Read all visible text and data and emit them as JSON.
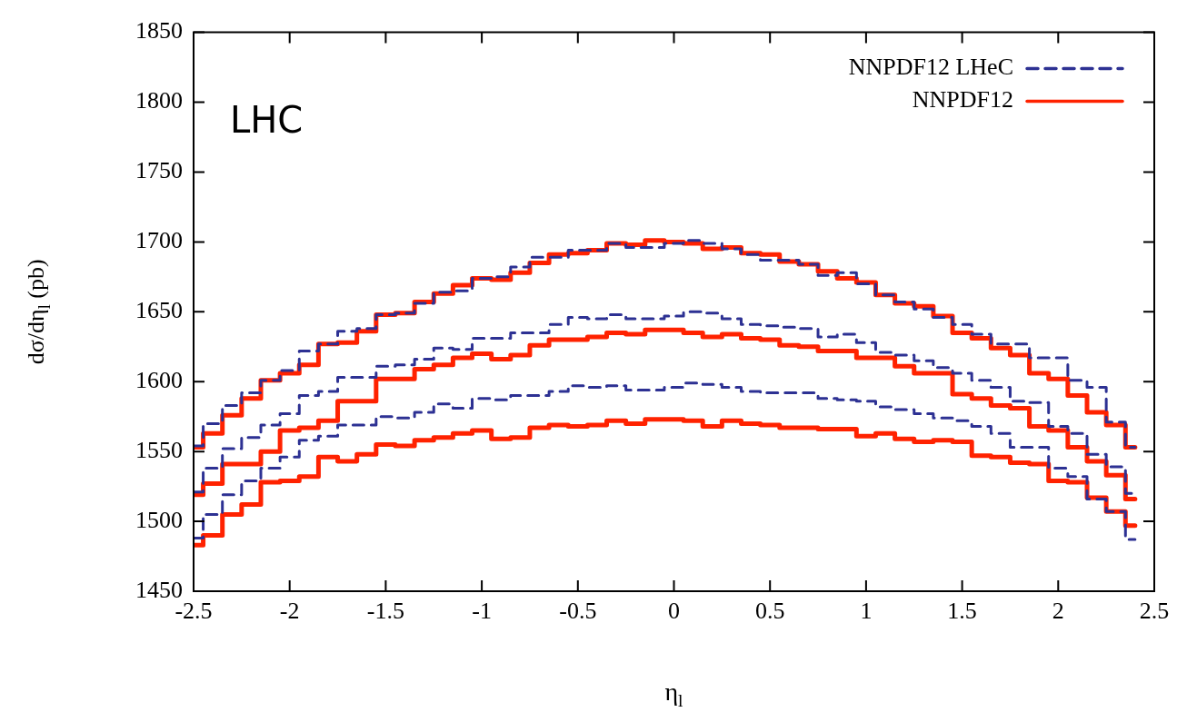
{
  "chart_data": {
    "type": "step",
    "xlabel": "η$_{l}$",
    "ylabel": "dσ/dη$_{l}$ (pb)",
    "annotations": [
      "LHC"
    ],
    "legend": "top right",
    "xlim": [
      -2.5,
      2.5
    ],
    "xticks": [
      -2.5,
      -2,
      -1.5,
      -1,
      -0.5,
      0,
      0.5,
      1,
      1.5,
      2,
      2.5
    ],
    "ylim": [
      1450,
      1850
    ],
    "yticks": [
      1450,
      1500,
      1550,
      1600,
      1650,
      1700,
      1750,
      1800,
      1850
    ],
    "x": [
      -2.5,
      -2.4,
      -2.3,
      -2.2,
      -2.1,
      -2.0,
      -1.9,
      -1.8,
      -1.7,
      -1.6,
      -1.5,
      -1.4,
      -1.3,
      -1.2,
      -1.1,
      -1.0,
      -0.9,
      -0.8,
      -0.7,
      -0.6,
      -0.5,
      -0.4,
      -0.3,
      -0.2,
      -0.1,
      0,
      0.1,
      0.2,
      0.3,
      0.4,
      0.5,
      0.6,
      0.7,
      0.8,
      0.9,
      1.0,
      1.1,
      1.2,
      1.3,
      1.4,
      1.5,
      1.6,
      1.7,
      1.8,
      1.9,
      2.0,
      2.1,
      2.2,
      2.3,
      2.4
    ],
    "series": [
      {
        "name": "NNPDF12 LHeC",
        "color": "#2d3193",
        "line_style": "dashed",
        "values": [
          1554,
          1570,
          1583,
          1592,
          1601,
          1608,
          1622,
          1627,
          1636,
          1638,
          1648,
          1649,
          1656,
          1664,
          1665,
          1674,
          1675,
          1682,
          1689,
          1689,
          1694,
          1694,
          1699,
          1696,
          1696,
          1699,
          1701,
          1699,
          1695,
          1691,
          1687,
          1687,
          1684,
          1676,
          1678,
          1670,
          1662,
          1657,
          1652,
          1646,
          1641,
          1634,
          1627,
          1627,
          1617,
          1617,
          1601,
          1596,
          1571,
          1553
        ]
      },
      {
        "name": "NNPDF12",
        "color": "#ff2200",
        "line_style": "solid",
        "values": [
          1553,
          1563,
          1576,
          1588,
          1601,
          1606,
          1612,
          1627,
          1628,
          1636,
          1648,
          1649,
          1657,
          1663,
          1669,
          1674,
          1673,
          1678,
          1685,
          1691,
          1692,
          1694,
          1699,
          1698,
          1701,
          1700,
          1699,
          1695,
          1696,
          1692,
          1691,
          1686,
          1684,
          1679,
          1674,
          1671,
          1662,
          1656,
          1654,
          1647,
          1635,
          1631,
          1624,
          1619,
          1606,
          1602,
          1590,
          1578,
          1569,
          1553
        ]
      },
      {
        "color": "#2d3193",
        "line_style": "dashed",
        "values": [
          1521,
          1538,
          1552,
          1560,
          1569,
          1577,
          1590,
          1593,
          1603,
          1603,
          1611,
          1612,
          1616,
          1624,
          1623,
          1631,
          1631,
          1635,
          1635,
          1641,
          1646,
          1645,
          1648,
          1645,
          1645,
          1647,
          1650,
          1649,
          1645,
          1641,
          1640,
          1639,
          1638,
          1632,
          1634,
          1628,
          1621,
          1619,
          1615,
          1610,
          1606,
          1601,
          1596,
          1586,
          1585,
          1568,
          1563,
          1548,
          1539,
          1520
        ]
      },
      {
        "color": "#ff2200",
        "line_style": "solid",
        "values": [
          1519,
          1527,
          1541,
          1541,
          1550,
          1565,
          1567,
          1572,
          1586,
          1586,
          1602,
          1602,
          1609,
          1612,
          1617,
          1620,
          1616,
          1619,
          1626,
          1630,
          1630,
          1632,
          1635,
          1634,
          1637,
          1637,
          1635,
          1632,
          1634,
          1631,
          1630,
          1626,
          1625,
          1622,
          1622,
          1617,
          1617,
          1611,
          1606,
          1606,
          1591,
          1588,
          1583,
          1581,
          1568,
          1565,
          1553,
          1543,
          1533,
          1516
        ]
      },
      {
        "color": "#2d3193",
        "line_style": "dashed",
        "values": [
          1488,
          1505,
          1519,
          1529,
          1538,
          1546,
          1558,
          1561,
          1569,
          1569,
          1575,
          1574,
          1578,
          1584,
          1581,
          1588,
          1587,
          1590,
          1590,
          1593,
          1597,
          1596,
          1597,
          1594,
          1594,
          1596,
          1599,
          1598,
          1596,
          1593,
          1592,
          1592,
          1592,
          1588,
          1587,
          1586,
          1582,
          1580,
          1577,
          1574,
          1572,
          1568,
          1563,
          1553,
          1553,
          1538,
          1532,
          1516,
          1507,
          1487
        ]
      },
      {
        "color": "#ff2200",
        "line_style": "solid",
        "values": [
          1483,
          1490,
          1505,
          1512,
          1528,
          1529,
          1532,
          1546,
          1543,
          1548,
          1555,
          1554,
          1558,
          1560,
          1563,
          1565,
          1559,
          1560,
          1567,
          1569,
          1568,
          1569,
          1572,
          1570,
          1573,
          1573,
          1572,
          1568,
          1572,
          1570,
          1569,
          1567,
          1567,
          1566,
          1566,
          1561,
          1563,
          1559,
          1557,
          1558,
          1557,
          1547,
          1546,
          1542,
          1541,
          1529,
          1528,
          1517,
          1507,
          1497
        ]
      }
    ]
  }
}
